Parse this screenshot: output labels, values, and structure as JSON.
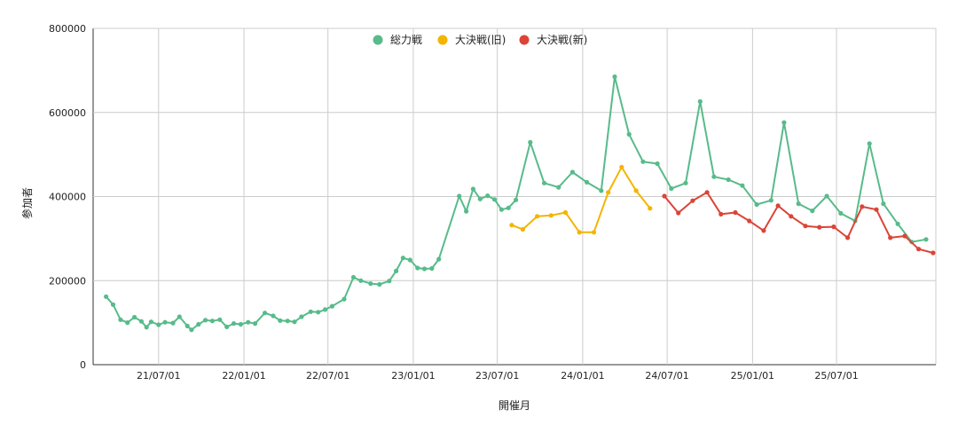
{
  "chart_data": {
    "type": "line",
    "xlabel": "開催月",
    "ylabel": "参加者",
    "ylim": [
      0,
      800000
    ],
    "y_ticks": [
      0,
      200000,
      400000,
      600000,
      800000
    ],
    "y_tick_labels": [
      "0",
      "200000",
      "400000",
      "600000",
      "800000"
    ],
    "x_range": [
      "2021-02-10",
      "2026-01-31"
    ],
    "x_ticks": [
      "2021-07-01",
      "2022-01-01",
      "2022-07-01",
      "2023-01-01",
      "2023-07-01",
      "2024-01-01",
      "2024-07-01",
      "2025-01-01",
      "2025-07-01"
    ],
    "x_tick_labels": [
      "21/07/01",
      "22/01/01",
      "22/07/01",
      "23/01/01",
      "23/07/01",
      "24/01/01",
      "24/07/01",
      "25/01/01",
      "25/07/01"
    ],
    "grid": true,
    "legend_position": "top",
    "series": [
      {
        "name": "総力戦",
        "color": "#57bb8a",
        "points": [
          [
            "2021-03-10",
            162000
          ],
          [
            "2021-03-25",
            143000
          ],
          [
            "2021-04-10",
            107000
          ],
          [
            "2021-04-25",
            100000
          ],
          [
            "2021-05-10",
            113000
          ],
          [
            "2021-05-25",
            103000
          ],
          [
            "2021-06-05",
            89000
          ],
          [
            "2021-06-15",
            102000
          ],
          [
            "2021-07-01",
            95000
          ],
          [
            "2021-07-15",
            101000
          ],
          [
            "2021-08-01",
            99000
          ],
          [
            "2021-08-15",
            114000
          ],
          [
            "2021-09-01",
            92000
          ],
          [
            "2021-09-10",
            83000
          ],
          [
            "2021-09-25",
            96000
          ],
          [
            "2021-10-10",
            106000
          ],
          [
            "2021-10-25",
            104000
          ],
          [
            "2021-11-10",
            107000
          ],
          [
            "2021-11-25",
            90000
          ],
          [
            "2021-12-10",
            98000
          ],
          [
            "2021-12-25",
            96000
          ],
          [
            "2022-01-10",
            101000
          ],
          [
            "2022-01-25",
            98000
          ],
          [
            "2022-02-15",
            123000
          ],
          [
            "2022-03-05",
            116000
          ],
          [
            "2022-03-20",
            105000
          ],
          [
            "2022-04-05",
            104000
          ],
          [
            "2022-04-20",
            102000
          ],
          [
            "2022-05-05",
            114000
          ],
          [
            "2022-05-25",
            126000
          ],
          [
            "2022-06-10",
            125000
          ],
          [
            "2022-06-25",
            131000
          ],
          [
            "2022-07-10",
            139000
          ],
          [
            "2022-08-05",
            156000
          ],
          [
            "2022-08-25",
            208000
          ],
          [
            "2022-09-10",
            200000
          ],
          [
            "2022-10-01",
            193000
          ],
          [
            "2022-10-20",
            191000
          ],
          [
            "2022-11-10",
            199000
          ],
          [
            "2022-11-25",
            223000
          ],
          [
            "2022-12-10",
            254000
          ],
          [
            "2022-12-25",
            249000
          ],
          [
            "2023-01-10",
            230000
          ],
          [
            "2023-01-25",
            228000
          ],
          [
            "2023-02-10",
            229000
          ],
          [
            "2023-02-25",
            251000
          ],
          [
            "2023-04-10",
            401000
          ],
          [
            "2023-04-25",
            365000
          ],
          [
            "2023-05-10",
            418000
          ],
          [
            "2023-05-25",
            394000
          ],
          [
            "2023-06-10",
            402000
          ],
          [
            "2023-06-25",
            393000
          ],
          [
            "2023-07-10",
            369000
          ],
          [
            "2023-07-25",
            373000
          ],
          [
            "2023-08-10",
            392000
          ],
          [
            "2023-09-10",
            529000
          ],
          [
            "2023-10-10",
            432000
          ],
          [
            "2023-11-10",
            422000
          ],
          [
            "2023-12-10",
            458000
          ],
          [
            "2024-01-10",
            434000
          ],
          [
            "2024-02-10",
            414000
          ],
          [
            "2024-03-10",
            685000
          ],
          [
            "2024-04-10",
            548000
          ],
          [
            "2024-05-10",
            483000
          ],
          [
            "2024-06-10",
            478000
          ],
          [
            "2024-07-10",
            419000
          ],
          [
            "2024-08-10",
            432000
          ],
          [
            "2024-09-10",
            626000
          ],
          [
            "2024-10-10",
            447000
          ],
          [
            "2024-11-10",
            440000
          ],
          [
            "2024-12-10",
            426000
          ],
          [
            "2025-01-10",
            381000
          ],
          [
            "2025-02-10",
            391000
          ],
          [
            "2025-03-10",
            576000
          ],
          [
            "2025-04-10",
            383000
          ],
          [
            "2025-05-10",
            366000
          ],
          [
            "2025-06-10",
            401000
          ],
          [
            "2025-07-10",
            360000
          ],
          [
            "2025-08-10",
            342000
          ],
          [
            "2025-09-10",
            526000
          ],
          [
            "2025-10-10",
            383000
          ],
          [
            "2025-11-10",
            335000
          ],
          [
            "2025-12-10",
            292000
          ],
          [
            "2026-01-10",
            298000
          ]
        ]
      },
      {
        "name": "大決戦(旧)",
        "color": "#f4b400",
        "points": [
          [
            "2023-08-01",
            332000
          ],
          [
            "2023-08-25",
            322000
          ],
          [
            "2023-09-25",
            353000
          ],
          [
            "2023-10-25",
            355000
          ],
          [
            "2023-11-25",
            362000
          ],
          [
            "2023-12-25",
            315000
          ],
          [
            "2024-01-25",
            315000
          ],
          [
            "2024-02-25",
            410000
          ],
          [
            "2024-03-25",
            470000
          ],
          [
            "2024-04-25",
            414000
          ],
          [
            "2024-05-25",
            372000
          ]
        ]
      },
      {
        "name": "大決戦(新)",
        "color": "#db4437",
        "points": [
          [
            "2024-06-25",
            401000
          ],
          [
            "2024-07-25",
            361000
          ],
          [
            "2024-08-25",
            390000
          ],
          [
            "2024-09-25",
            410000
          ],
          [
            "2024-10-25",
            358000
          ],
          [
            "2024-11-25",
            362000
          ],
          [
            "2024-12-25",
            342000
          ],
          [
            "2025-01-25",
            319000
          ],
          [
            "2025-02-25",
            378000
          ],
          [
            "2025-03-25",
            353000
          ],
          [
            "2025-04-25",
            330000
          ],
          [
            "2025-05-25",
            327000
          ],
          [
            "2025-06-25",
            328000
          ],
          [
            "2025-07-25",
            302000
          ],
          [
            "2025-08-25",
            376000
          ],
          [
            "2025-09-25",
            369000
          ],
          [
            "2025-10-25",
            302000
          ],
          [
            "2025-11-25",
            306000
          ],
          [
            "2025-12-25",
            275000
          ],
          [
            "2026-01-25",
            266000
          ]
        ]
      }
    ]
  }
}
